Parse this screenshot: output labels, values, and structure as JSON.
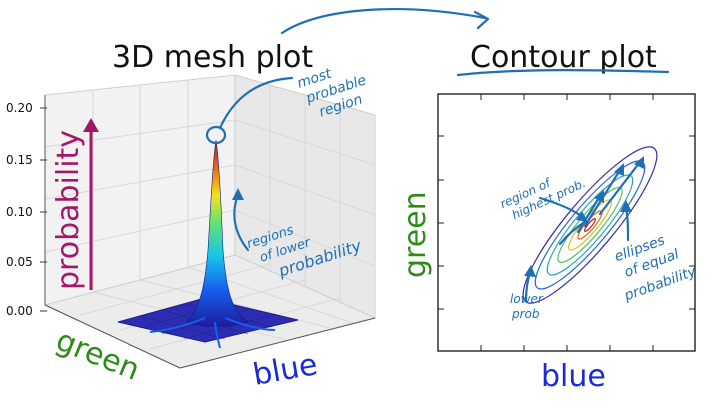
{
  "left_panel": {
    "title": "3D mesh plot",
    "z_ticks": [
      "0.20",
      "0.15",
      "0.10",
      "0.05",
      "0.00"
    ],
    "axis_probability": "probability",
    "axis_green": "green",
    "axis_blue": "blue",
    "note_most_probable": [
      "most",
      "probable",
      "region"
    ],
    "note_lower": [
      "regions",
      "of lower",
      "probability"
    ]
  },
  "right_panel": {
    "title": "Contour plot",
    "axis_green": "green",
    "axis_blue": "blue",
    "note_highest": [
      "region of",
      "highest prob."
    ],
    "note_ellipses": [
      "ellipses",
      "of equal",
      "probability"
    ],
    "note_lower": [
      "lower",
      "prob"
    ]
  },
  "colors": {
    "probability_axis": "#a3166a",
    "green_axis": "#2e8b1a",
    "blue_axis": "#1a2ad6",
    "annotation_ink": "#1f6fb5"
  }
}
